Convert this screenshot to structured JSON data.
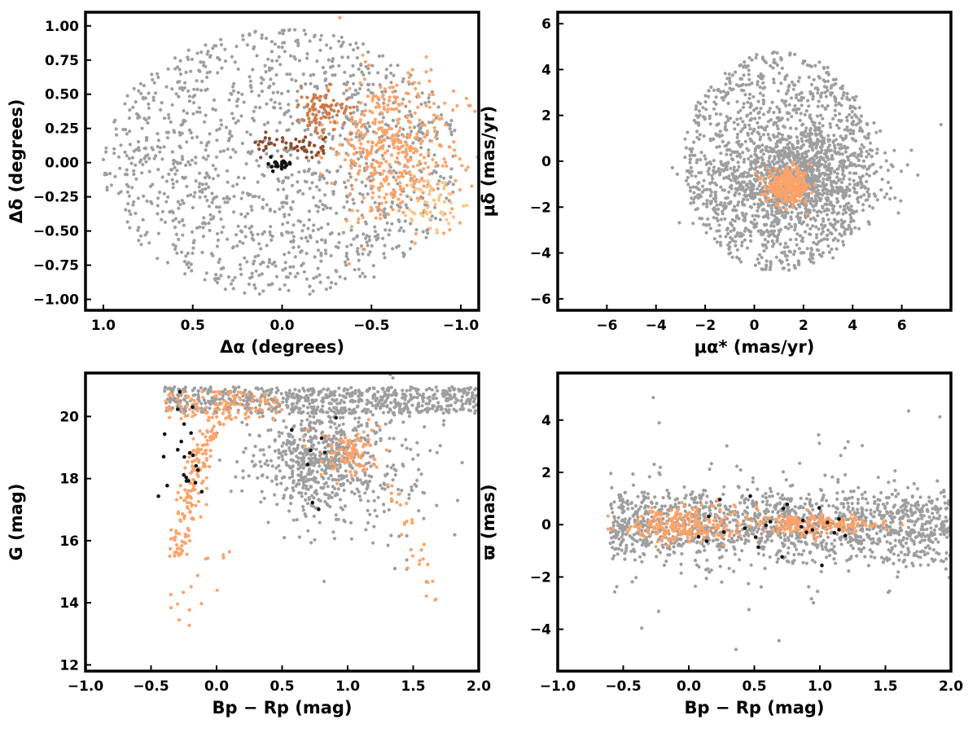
{
  "chart_data": [
    {
      "id": "position",
      "type": "scatter",
      "xlabel": "Δα (degrees)",
      "ylabel": "Δδ (degrees)",
      "xlim": [
        1.1,
        -1.1
      ],
      "ylim": [
        -1.08,
        1.1
      ],
      "xticks": [
        1.0,
        0.5,
        0.0,
        -0.5,
        -1.0
      ],
      "xtick_labels": [
        "1.0",
        "0.5",
        "0.0",
        "−0.5",
        "−1.0"
      ],
      "yticks": [
        -1.0,
        -0.75,
        -0.5,
        -0.25,
        0.0,
        0.25,
        0.5,
        0.75,
        1.0
      ],
      "ytick_labels": [
        "−1.00",
        "−0.75",
        "−0.50",
        "−0.25",
        "0.00",
        "0.25",
        "0.50",
        "0.75",
        "1.00"
      ],
      "series": [
        {
          "role": "field",
          "color": "#9e9e9e",
          "model": "disk",
          "center": [
            0.0,
            0.0
          ],
          "radius": [
            1.0,
            0.98
          ],
          "count": 1300
        },
        {
          "role": "member-main",
          "color": "#fca36a",
          "model": "blob",
          "center": [
            -0.62,
            0.1
          ],
          "spread": [
            0.18,
            0.28
          ],
          "count": 420
        },
        {
          "role": "member-light",
          "color": "#fcc48a",
          "model": "blob",
          "center": [
            -0.82,
            -0.3
          ],
          "spread": [
            0.08,
            0.1
          ],
          "count": 60
        },
        {
          "role": "member-mid",
          "color": "#d07a4a",
          "model": "blob",
          "center": [
            -0.22,
            0.4
          ],
          "spread": [
            0.08,
            0.08
          ],
          "count": 90
        },
        {
          "role": "member-dark",
          "color": "#8b4b2c",
          "model": "blob",
          "center": [
            -0.12,
            0.12
          ],
          "spread": [
            0.06,
            0.04
          ],
          "count": 40
        },
        {
          "role": "member-dark-2",
          "color": "#8b4b2c",
          "model": "blob",
          "center": [
            0.1,
            0.13
          ],
          "spread": [
            0.03,
            0.04
          ],
          "count": 18
        },
        {
          "role": "core",
          "color": "#111111",
          "model": "blob",
          "center": [
            0.02,
            -0.01
          ],
          "spread": [
            0.04,
            0.02
          ],
          "count": 22
        }
      ]
    },
    {
      "id": "proper-motion",
      "type": "scatter",
      "xlabel": "μα* (mas/yr)",
      "ylabel": "μδ (mas/yr)",
      "xlim": [
        -8,
        8
      ],
      "ylim": [
        -6.5,
        6.5
      ],
      "xticks": [
        -6,
        -4,
        -2,
        0,
        2,
        4,
        6
      ],
      "xtick_labels": [
        "−6",
        "−4",
        "−2",
        "0",
        "2",
        "4",
        "6"
      ],
      "yticks": [
        -6,
        -4,
        -2,
        0,
        2,
        4,
        6
      ],
      "ytick_labels": [
        "−6",
        "−4",
        "−2",
        "0",
        "2",
        "4",
        "6"
      ],
      "series": [
        {
          "role": "field",
          "color": "#9e9e9e",
          "model": "disk",
          "center": [
            1.0,
            0.0
          ],
          "radius": [
            3.9,
            4.8
          ],
          "count": 1200
        },
        {
          "role": "field-core",
          "color": "#9e9e9e",
          "model": "blob",
          "center": [
            1.8,
            -0.8
          ],
          "spread": [
            1.6,
            1.1
          ],
          "count": 900
        },
        {
          "role": "members",
          "color": "#fca36a",
          "model": "blob",
          "center": [
            1.4,
            -1.1
          ],
          "spread": [
            0.45,
            0.35
          ],
          "count": 300
        }
      ]
    },
    {
      "id": "cmd",
      "type": "scatter",
      "xlabel": "Bp − Rp (mag)",
      "ylabel": "G (mag)",
      "xlim": [
        -1.0,
        2.0
      ],
      "ylim": [
        11.8,
        21.4
      ],
      "xticks": [
        -1.0,
        -0.5,
        0.0,
        0.5,
        1.0,
        1.5,
        2.0
      ],
      "xtick_labels": [
        "−1.0",
        "−0.5",
        "0.0",
        "0.5",
        "1.0",
        "1.5",
        "2.0"
      ],
      "yticks": [
        12,
        14,
        16,
        18,
        20
      ],
      "ytick_labels": [
        "12",
        "14",
        "16",
        "18",
        "20"
      ],
      "series": [
        {
          "role": "field",
          "color": "#9e9e9e",
          "model": "cmd-field",
          "count": 1400
        },
        {
          "role": "members",
          "color": "#fca36a",
          "model": "cmd-members",
          "count": 420
        },
        {
          "role": "core",
          "color": "#111111",
          "model": "cmd-core",
          "count": 30
        }
      ]
    },
    {
      "id": "parallax",
      "type": "scatter",
      "xlabel": "Bp − Rp (mag)",
      "ylabel": "ϖ (mas)",
      "xlim": [
        -1.0,
        2.0
      ],
      "ylim": [
        -5.6,
        5.8
      ],
      "xticks": [
        -1.0,
        -0.5,
        0.0,
        0.5,
        1.0,
        1.5,
        2.0
      ],
      "xtick_labels": [
        "−1.0",
        "−0.5",
        "0.0",
        "0.5",
        "1.0",
        "1.5",
        "2.0"
      ],
      "yticks": [
        -4,
        -2,
        0,
        2,
        4
      ],
      "ytick_labels": [
        "−4",
        "−2",
        "0",
        "2",
        "4"
      ],
      "series": [
        {
          "role": "field",
          "color": "#9e9e9e",
          "model": "plx-field",
          "count": 1500
        },
        {
          "role": "members",
          "color": "#fca36a",
          "model": "plx-members",
          "count": 420
        },
        {
          "role": "core",
          "color": "#111111",
          "model": "plx-core",
          "count": 25
        }
      ]
    }
  ]
}
